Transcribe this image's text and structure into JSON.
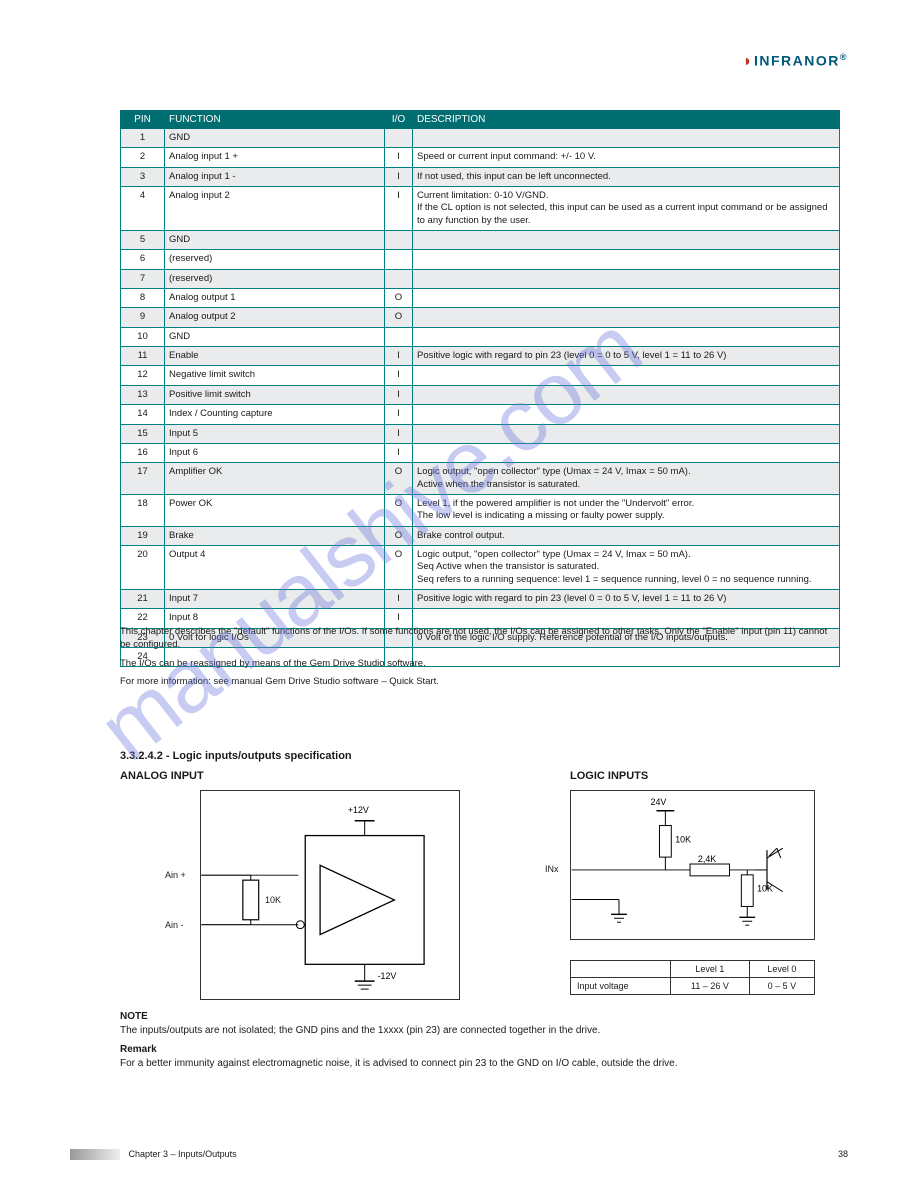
{
  "brand": {
    "name": "INFRANOR",
    "reg": "®"
  },
  "table_headers": {
    "pin": "PIN",
    "function": "FUNCTION",
    "io": "I/O",
    "desc": "DESCRIPTION"
  },
  "rows": [
    {
      "pin": "1",
      "fn": "GND",
      "io": "",
      "d": "",
      "s": 1
    },
    {
      "pin": "2",
      "fn": "Analog input 1 +",
      "io": "I",
      "d": "Speed or current input command: +/- 10 V.",
      "s": 0
    },
    {
      "pin": "3",
      "fn": "Analog input 1 -",
      "io": "I",
      "d": "If not used, this input can be left unconnected.",
      "s": 1
    },
    {
      "pin": "4",
      "fn": "Analog input 2",
      "io": "I",
      "d": "Current limitation: 0-10 V/GND.\nIf the CL option is not selected, this input can be used as a current input command or be assigned to any function by the user.",
      "s": 0
    },
    {
      "pin": "5",
      "fn": "GND",
      "io": "",
      "d": "",
      "s": 1
    },
    {
      "pin": "6",
      "fn": "(reserved)",
      "io": "",
      "d": "",
      "s": 0
    },
    {
      "pin": "7",
      "fn": "(reserved)",
      "io": "",
      "d": "",
      "s": 1
    },
    {
      "pin": "8",
      "fn": "Analog output 1",
      "io": "O",
      "d": "",
      "s": 0
    },
    {
      "pin": "9",
      "fn": "Analog output 2",
      "io": "O",
      "d": "",
      "s": 1
    },
    {
      "pin": "10",
      "fn": "GND",
      "io": "",
      "d": "",
      "s": 0
    },
    {
      "pin": "11",
      "fn": "Enable",
      "io": "I",
      "d": "Positive logic with regard to pin 23 (level 0 = 0 to 5 V, level 1 = 11 to 26 V)",
      "s": 1
    },
    {
      "pin": "12",
      "fn": "Negative limit switch",
      "io": "I",
      "d": "",
      "s": 0
    },
    {
      "pin": "13",
      "fn": "Positive limit switch",
      "io": "I",
      "d": "",
      "s": 1
    },
    {
      "pin": "14",
      "fn": "Index / Counting capture",
      "io": "I",
      "d": "",
      "s": 0
    },
    {
      "pin": "15",
      "fn": "Input 5",
      "io": "I",
      "d": "",
      "s": 1
    },
    {
      "pin": "16",
      "fn": "Input 6",
      "io": "I",
      "d": "",
      "s": 0
    },
    {
      "pin": "17",
      "fn": "Amplifier OK",
      "io": "O",
      "d": "Logic output, \"open collector\" type (Umax = 24 V, Imax = 50 mA).\nActive when the transistor is saturated.",
      "s": 1
    },
    {
      "pin": "18",
      "fn": "Power OK",
      "io": "O",
      "d": "Level 1, if the powered amplifier is not under the \"Undervolt\" error.\nThe low level is indicating a missing or faulty power supply.",
      "s": 0
    },
    {
      "pin": "19",
      "fn": "Brake",
      "io": "O",
      "d": "Brake control output.",
      "s": 1
    },
    {
      "pin": "20",
      "fn": "Output 4",
      "io": "O",
      "d": "Logic output, \"open collector\" type (Umax = 24 V, Imax = 50 mA).\nSeq Active when the transistor is saturated.\nSeq refers to a running sequence: level 1 = sequence running, level 0 = no sequence running.",
      "s": 0
    },
    {
      "pin": "21",
      "fn": "Input 7",
      "io": "I",
      "d": "Positive logic with regard to pin 23 (level 0 = 0 to 5 V, level 1 = 11 to 26 V)",
      "s": 1
    },
    {
      "pin": "22",
      "fn": "Input 8",
      "io": "I",
      "d": "",
      "s": 0
    },
    {
      "pin": "23",
      "fn": "0 Volt for logic I/Os",
      "io": "",
      "d": "0 Volt of the logic I/O supply. Reference potential of the I/O inputs/outputs.",
      "s": 1
    },
    {
      "pin": "24",
      "fn": "",
      "io": "",
      "d": "",
      "s": 0
    }
  ],
  "notes": {
    "p1": "This chapter describes the \"default\" functions of the I/Os. If some functions are not used, the I/Os can be assigned to other tasks. Only the \"Enable\" input (pin 11) cannot be configured.",
    "p2": "The I/Os can be reassigned by means of the Gem Drive Studio software.",
    "p3": "For more information: see manual Gem Drive Studio software – Quick Start."
  },
  "h_spec": "3.3.2.4.2 - Logic inputs/outputs specification",
  "h_analog": "ANALOG INPUT",
  "h_logic": "LOGIC INPUTS",
  "analog": {
    "ainp": "Ain +",
    "ainm": "Ain -",
    "vp": "+12V",
    "vm": "-12V",
    "r": "10K"
  },
  "logic": {
    "in_label": "INx",
    "v24": "24V",
    "r1": "10K",
    "r2": "2,4K",
    "r3": "10K",
    "extra": "(not shown)"
  },
  "logic_table": {
    "r1c1": "",
    "r1c2": "Level 1",
    "r1c3": "Level 0",
    "r2c1": "Input voltage",
    "r2c2": "11 – 26 V",
    "r2c3": "0 – 5 V"
  },
  "opto": {
    "b1": "NOTE",
    "p1": "The inputs/outputs are not isolated; the GND pins and the 1xxxx (pin 23) are connected together in the drive.",
    "b2": "Remark",
    "p2": "For a better immunity against electromagnetic noise, it is advised to connect pin 23 to the GND on I/O cable, outside the drive."
  },
  "footer": {
    "text": "Chapter 3 – Inputs/Outputs",
    "pg": "38"
  },
  "watermark": "manualshive.com",
  "colors": {
    "teal": "#006d70",
    "border": "#008080",
    "shade": "#e9ebec",
    "brand_blue": "#00587a",
    "brand_red": "#c03020",
    "watermark": "rgba(110,120,220,0.38)"
  }
}
